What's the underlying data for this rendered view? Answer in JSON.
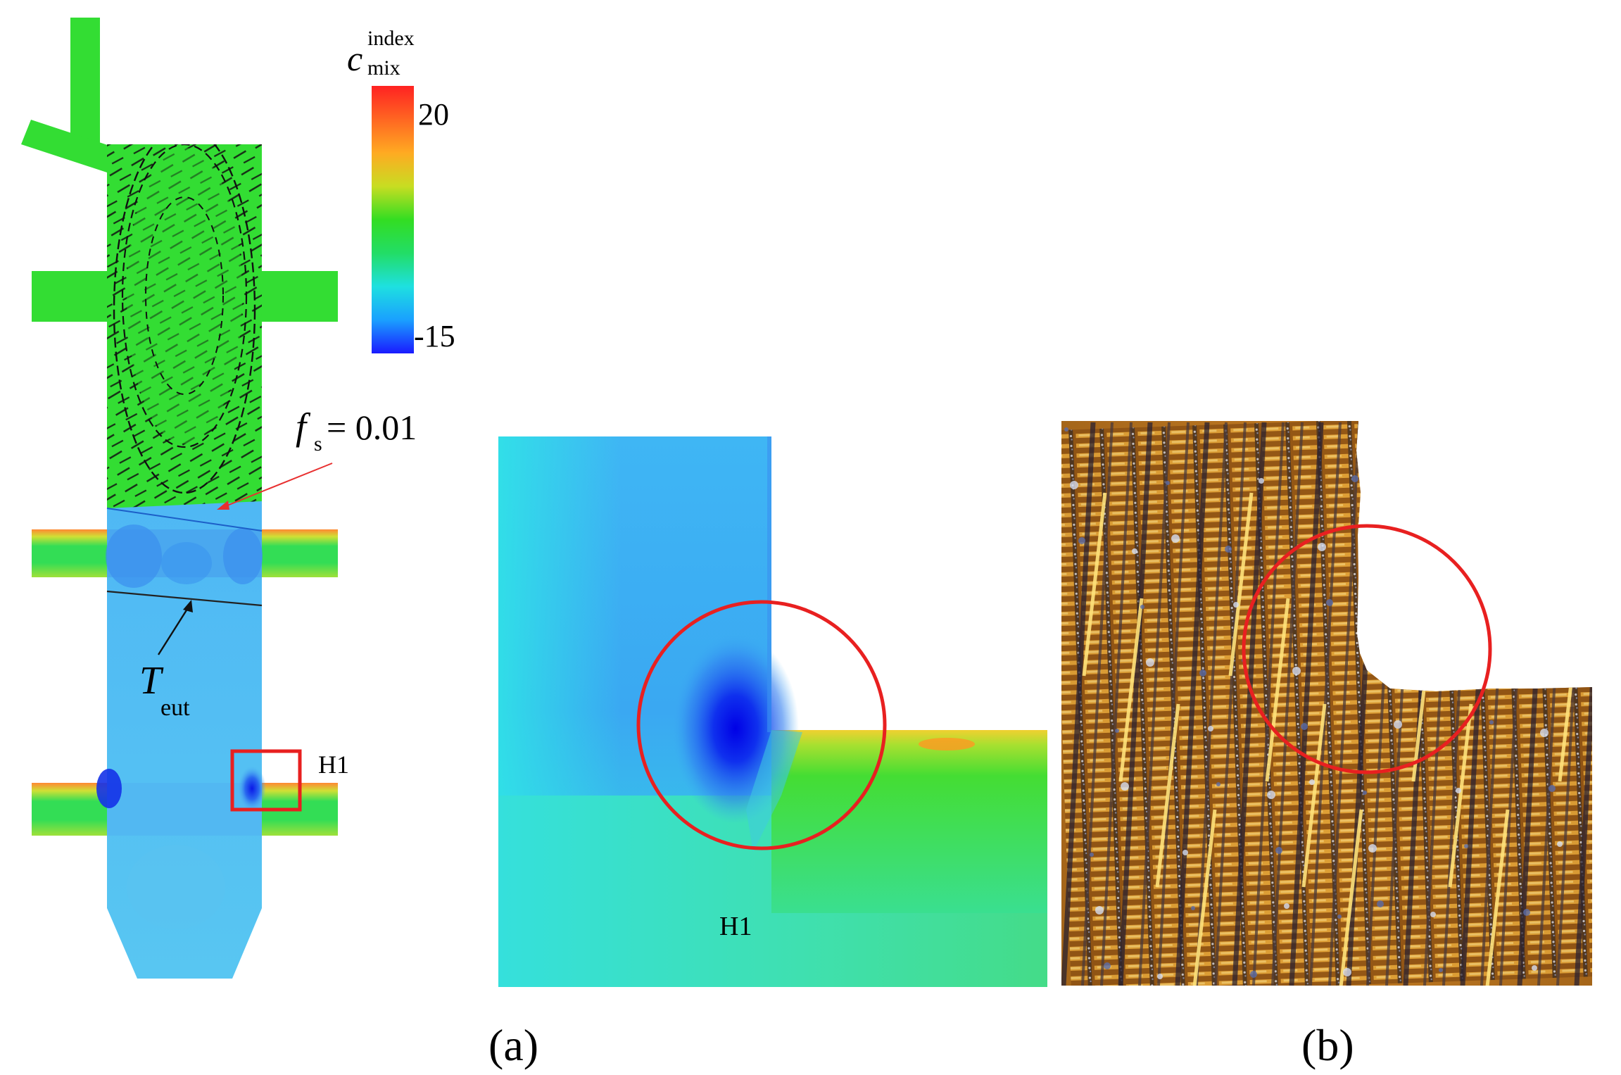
{
  "colorbar": {
    "symbol": "c",
    "superscript": "index",
    "subscript": "mix",
    "max_label": "20",
    "min_label": "-15",
    "stops": [
      "#1a1aff",
      "#1aa0ff",
      "#1ee0e0",
      "#22dd66",
      "#33dd22",
      "#c8dd22",
      "#ffaa22",
      "#ff6622",
      "#ff2222"
    ]
  },
  "annotations": {
    "fs_symbol": "f",
    "fs_subscript": "s",
    "fs_value": " = 0.01",
    "teut_symbol": "T",
    "teut_subscript": "eut",
    "h1_left": "H1",
    "h1_center": "H1"
  },
  "panels": {
    "a_label": "(a)",
    "b_label": "(b)"
  },
  "colors": {
    "green": "#33dd33",
    "blue_field": "#4fb4f2",
    "marker_red": "#e82020"
  }
}
